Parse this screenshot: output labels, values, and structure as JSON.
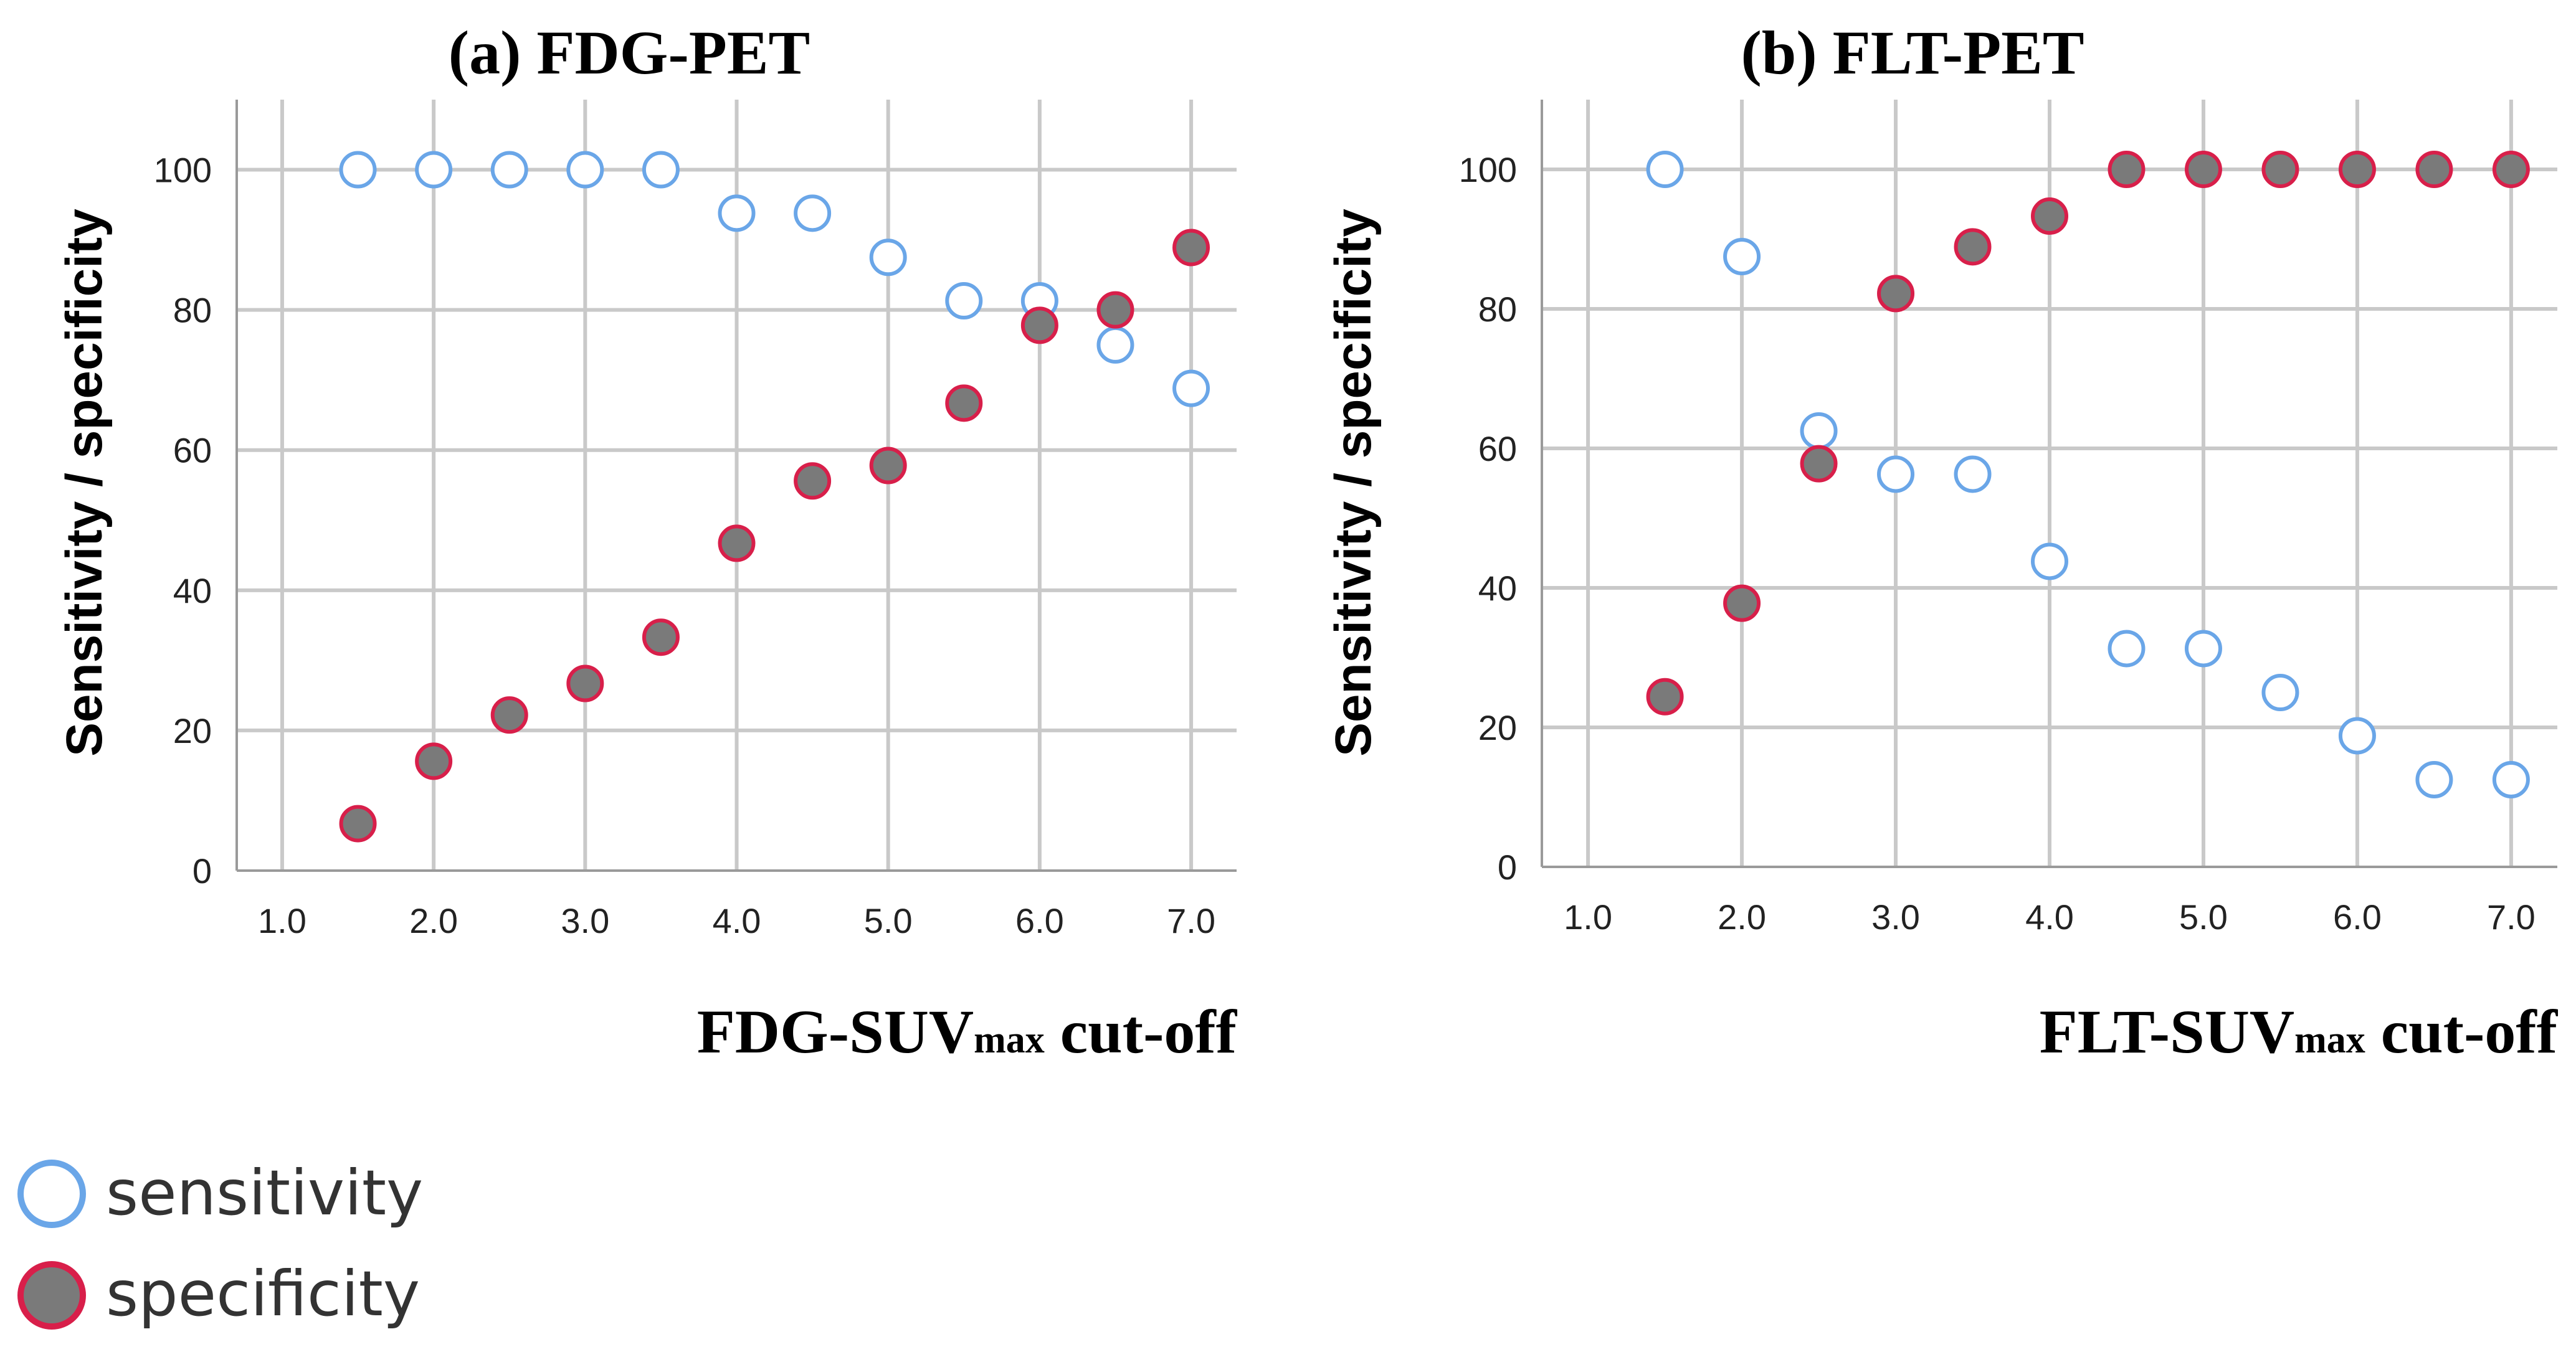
{
  "colors": {
    "sensitivity_stroke": "#6aa6e8",
    "sensitivity_fill": "#ffffff",
    "specificity_stroke": "#d81f4a",
    "specificity_fill": "#7a7a7a"
  },
  "legend": {
    "sensitivity_label": "sensitivity",
    "specificity_label": "specificity"
  },
  "chart_data": [
    {
      "type": "scatter",
      "title": "(a) FDG-PET",
      "xlabel_main": "FDG-SUV",
      "xlabel_sub": "max",
      "xlabel_tail": " cut-off",
      "ylabel": "Sensitivity / specificity",
      "xlim": [
        0.7,
        7.3
      ],
      "ylim": [
        0,
        110
      ],
      "xticks": [
        1.0,
        2.0,
        3.0,
        4.0,
        5.0,
        6.0,
        7.0
      ],
      "xtick_labels": [
        "1.0",
        "2.0",
        "3.0",
        "4.0",
        "5.0",
        "6.0",
        "7.0"
      ],
      "yticks": [
        0,
        20,
        40,
        60,
        80,
        100
      ],
      "ytick_labels": [
        "0",
        "20",
        "40",
        "60",
        "80",
        "100"
      ],
      "grid": true,
      "x": [
        1.5,
        2.0,
        2.5,
        3.0,
        3.5,
        4.0,
        4.5,
        5.0,
        5.5,
        6.0,
        6.5,
        7.0
      ],
      "series": [
        {
          "name": "sensitivity",
          "values": [
            100,
            100,
            100,
            100,
            100,
            93.8,
            93.8,
            87.5,
            81.3,
            81.3,
            75.0,
            68.8
          ]
        },
        {
          "name": "specificity",
          "values": [
            6.7,
            15.6,
            22.2,
            26.7,
            33.3,
            46.7,
            55.6,
            57.8,
            66.7,
            77.8,
            80.0,
            88.9
          ]
        }
      ]
    },
    {
      "type": "scatter",
      "title": "(b) FLT-PET",
      "xlabel_main": "FLT-SUV",
      "xlabel_sub": "max",
      "xlabel_tail": " cut-off",
      "ylabel": "Sensitivity / specificity",
      "xlim": [
        0.7,
        7.3
      ],
      "ylim": [
        0,
        110
      ],
      "xticks": [
        1.0,
        2.0,
        3.0,
        4.0,
        5.0,
        6.0,
        7.0
      ],
      "xtick_labels": [
        "1.0",
        "2.0",
        "3.0",
        "4.0",
        "5.0",
        "6.0",
        "7.0"
      ],
      "yticks": [
        0,
        20,
        40,
        60,
        80,
        100
      ],
      "ytick_labels": [
        "0",
        "20",
        "40",
        "60",
        "80",
        "100"
      ],
      "grid": true,
      "x": [
        1.5,
        2.0,
        2.5,
        3.0,
        3.5,
        4.0,
        4.5,
        5.0,
        5.5,
        6.0,
        6.5,
        7.0
      ],
      "series": [
        {
          "name": "sensitivity",
          "values": [
            100,
            87.5,
            62.5,
            56.3,
            56.3,
            43.8,
            31.3,
            31.3,
            25.0,
            18.8,
            12.5,
            12.5
          ]
        },
        {
          "name": "specificity",
          "values": [
            24.4,
            37.8,
            57.8,
            82.2,
            88.9,
            93.3,
            100,
            100,
            100,
            100,
            100,
            100
          ]
        }
      ]
    }
  ]
}
